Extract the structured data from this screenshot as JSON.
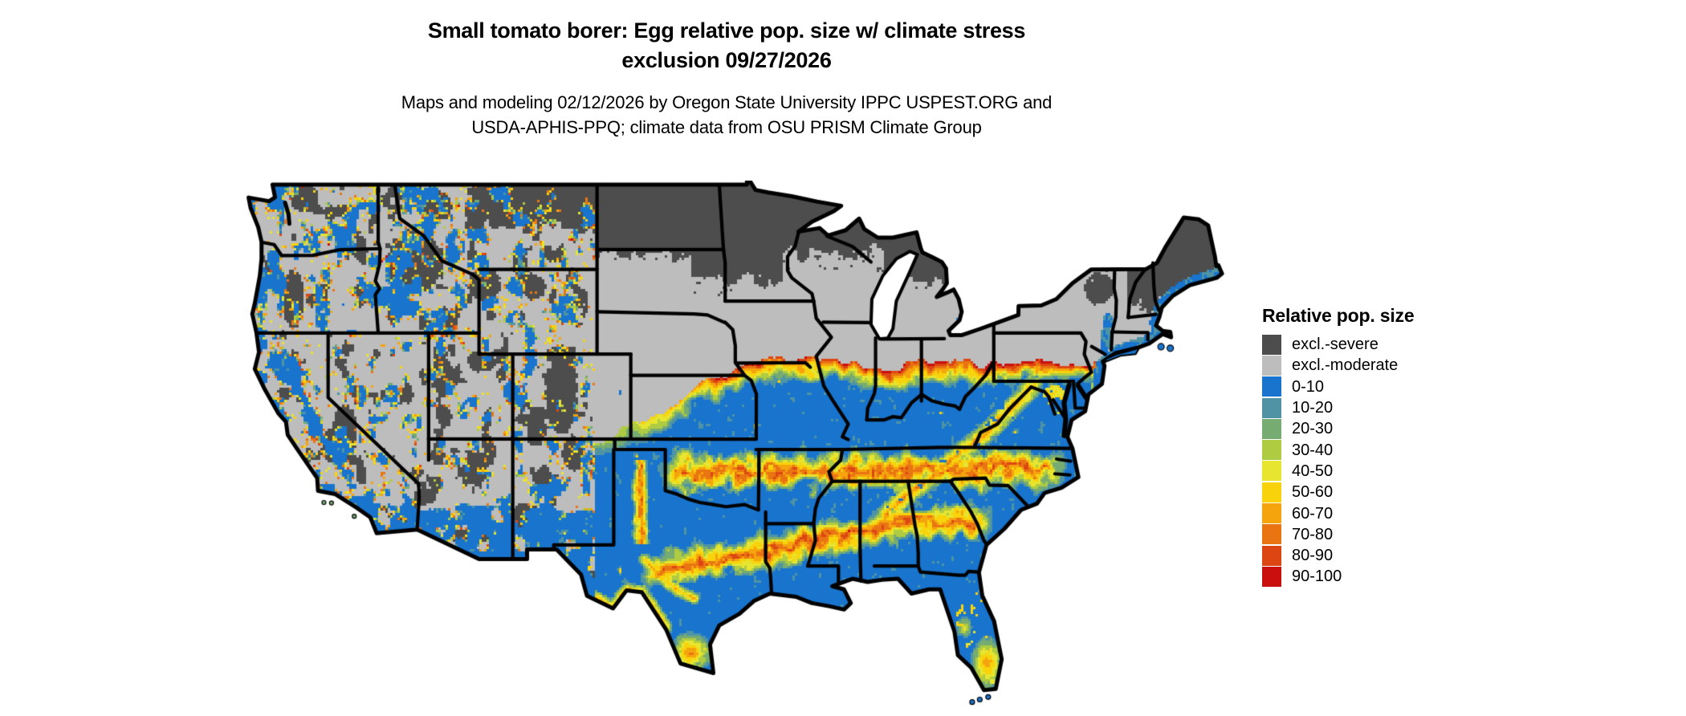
{
  "header": {
    "title_line1": "Small tomato borer: Egg relative pop. size w/ climate stress",
    "title_line2": "exclusion 09/27/2026",
    "subtitle_line1": "Maps and modeling 02/12/2026 by Oregon State University IPPC USPEST.ORG and",
    "subtitle_line2": "USDA-APHIS-PPQ; climate data from OSU PRISM Climate Group"
  },
  "legend": {
    "title": "Relative pop. size",
    "items": [
      {
        "label": "excl.-severe",
        "color": "#4D4D4D"
      },
      {
        "label": "excl.-moderate",
        "color": "#BDBDBD"
      },
      {
        "label": "0-10",
        "color": "#1874CD"
      },
      {
        "label": "10-20",
        "color": "#4F94A4"
      },
      {
        "label": "20-30",
        "color": "#76AB72"
      },
      {
        "label": "30-40",
        "color": "#AECB42"
      },
      {
        "label": "40-50",
        "color": "#E7E52F"
      },
      {
        "label": "50-60",
        "color": "#F8D30C"
      },
      {
        "label": "60-70",
        "color": "#F5A40D"
      },
      {
        "label": "70-80",
        "color": "#E97512"
      },
      {
        "label": "80-90",
        "color": "#DC4612"
      },
      {
        "label": "90-100",
        "color": "#C9100F"
      }
    ]
  },
  "map": {
    "region_label": "Contiguous United States",
    "background_color": "#FFFFFF",
    "boundary_color": "#000000"
  }
}
